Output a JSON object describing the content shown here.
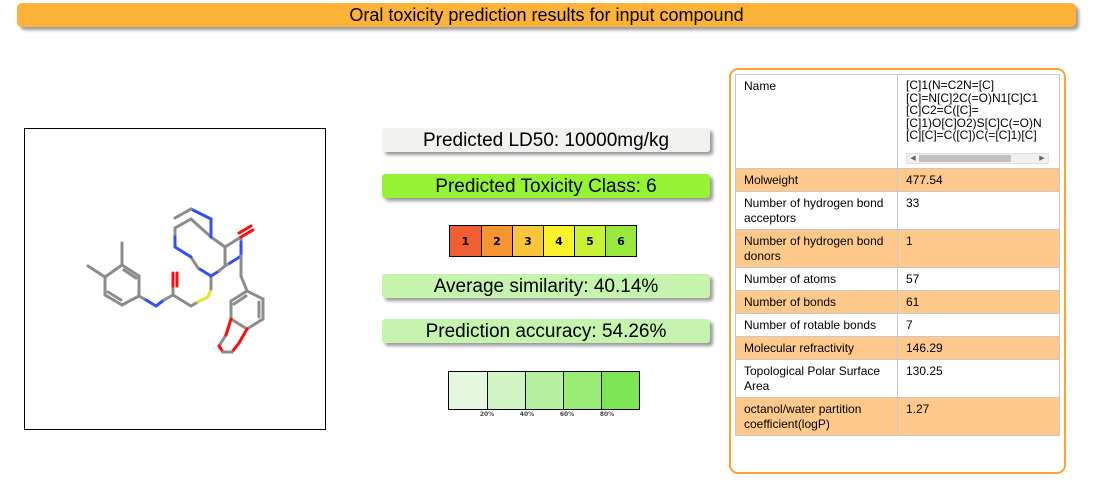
{
  "header": {
    "title": "Oral toxicity prediction results for input compound"
  },
  "prediction": {
    "ld50": "Predicted LD50: 10000mg/kg",
    "toxicity_class": "Predicted Toxicity Class: 6",
    "average_similarity": "Average similarity: 40.14%",
    "prediction_accuracy": "Prediction accuracy: 54.26%"
  },
  "class_scale": {
    "active_class": 6,
    "cells": [
      {
        "label": "1",
        "color": "#f05f33"
      },
      {
        "label": "2",
        "color": "#f59632"
      },
      {
        "label": "3",
        "color": "#f8c63a"
      },
      {
        "label": "4",
        "color": "#f9f22d"
      },
      {
        "label": "5",
        "color": "#c8f235"
      },
      {
        "label": "6",
        "color": "#98e93b"
      }
    ]
  },
  "accuracy_scale": {
    "value_percent": 54.26,
    "labels": [
      "20%",
      "40%",
      "60%",
      "80%"
    ],
    "colors": [
      "#e6f9df",
      "#d2f5c6",
      "#b8f0a1",
      "#9aec77",
      "#7ce556"
    ]
  },
  "properties": {
    "name": {
      "label": "Name",
      "value": "[C]1(N=C2N=[C]\n[C]=N[C]2C(=O)N1[C]C1\n[C]C2=C([C]=\n[C]1)O[C]O2)S[C]C(=O)N\n[C][C]=C([C])C(=[C]1)[C]"
    },
    "rows": [
      {
        "label": "Molweight",
        "value": "477.54"
      },
      {
        "label": "Number of hydrogen bond acceptors",
        "value": "33"
      },
      {
        "label": "Number of hydrogen bond donors",
        "value": "1"
      },
      {
        "label": "Number of atoms",
        "value": "57"
      },
      {
        "label": "Number of bonds",
        "value": "61"
      },
      {
        "label": "Number of rotable bonds",
        "value": "7"
      },
      {
        "label": "Molecular refractivity",
        "value": "146.29"
      },
      {
        "label": "Topological Polar Surface Area",
        "value": "130.25"
      },
      {
        "label": "octanol/water partition coefficient(logP)",
        "value": "1.27"
      }
    ]
  },
  "structure_colors": {
    "carbon": "#8c8c8c",
    "nitrogen": "#3050f8",
    "oxygen": "#ff0d0d",
    "sulfur": "#e5e52a"
  }
}
